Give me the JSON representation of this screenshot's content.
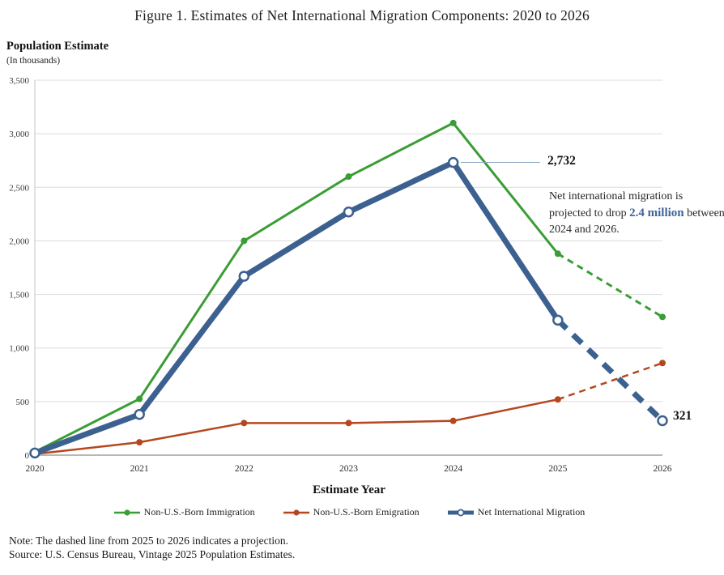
{
  "figure": {
    "title": "Figure 1. Estimates of Net International Migration Components: 2020 to 2026",
    "y_axis_title": "Population Estimate",
    "y_axis_subtitle": "(In thousands)",
    "x_axis_title": "Estimate Year",
    "note": "Note: The dashed line from 2025 to 2026 indicates a projection.",
    "source": "Source: U.S. Census Bureau, Vintage 2025 Population Estimates."
  },
  "annotations": {
    "peak_value_label": "2,732",
    "end_value_label": "321",
    "projection_text_before": "Net international migration is projected to drop ",
    "projection_text_highlight": "2.4 million",
    "projection_text_after": " between 2024 and 2026."
  },
  "colors": {
    "immigration_green": "#3a9d35",
    "emigration_red": "#b5471f",
    "net_migration_blue": "#3c6090",
    "gridline_gray": "#dcdcdc",
    "axis_gray": "#8c8c8c",
    "callout_blue": "#8ca6c4",
    "highlight_text_blue": "#3e639a"
  },
  "chart_data": {
    "type": "line",
    "title": "Figure 1. Estimates of Net International Migration Components: 2020 to 2026",
    "xlabel": "Estimate Year",
    "ylabel": "Population Estimate (In thousands)",
    "x": [
      "2020",
      "2021",
      "2022",
      "2023",
      "2024",
      "2025",
      "2026"
    ],
    "ylim": [
      0,
      3500
    ],
    "ytick_step": 500,
    "grid": "horizontal",
    "legend_position": "bottom",
    "projection_from_index": 5,
    "series": [
      {
        "name": "Non-U.S.-Born Immigration",
        "color": "#3a9d35",
        "marker": "filled-circle",
        "line_width": 3,
        "values": [
          30,
          525,
          2000,
          2600,
          3100,
          1880,
          1290
        ]
      },
      {
        "name": "Non-U.S.-Born Emigration",
        "color": "#b5471f",
        "marker": "filled-circle",
        "line_width": 2.5,
        "values": [
          10,
          120,
          300,
          300,
          320,
          520,
          860
        ]
      },
      {
        "name": "Net International Migration",
        "color": "#3c6090",
        "marker": "open-circle",
        "line_width": 7,
        "values": [
          20,
          380,
          1670,
          2270,
          2732,
          1260,
          321
        ]
      }
    ],
    "annotated_points": [
      {
        "series": "Net International Migration",
        "x": "2024",
        "label": "2,732"
      },
      {
        "series": "Net International Migration",
        "x": "2026",
        "label": "321"
      }
    ]
  }
}
